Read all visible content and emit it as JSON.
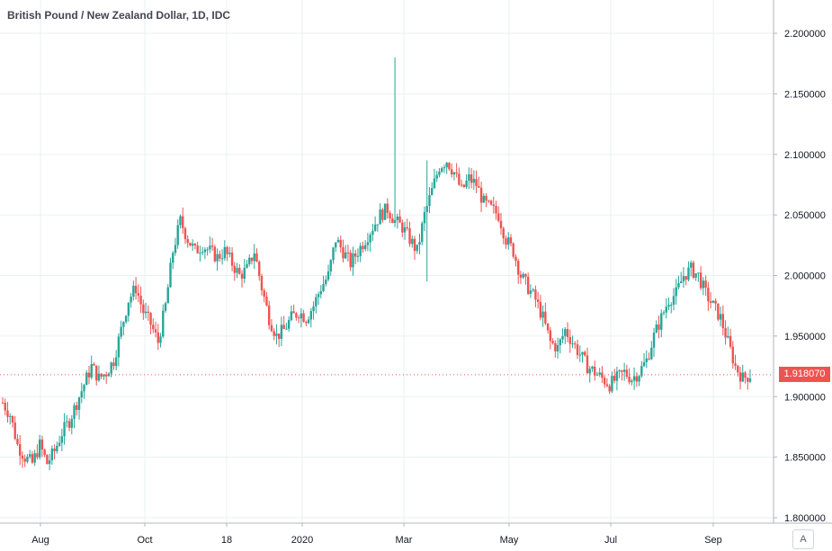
{
  "title": "British Pound / New Zealand Dollar, 1D, IDC",
  "auto_button": "A",
  "last_price": "1.918070",
  "colors": {
    "up": "#26a69a",
    "down": "#ef5350",
    "grid": "#e8f0f3",
    "axis_text": "#131722"
  },
  "chart_data": {
    "type": "candlestick",
    "y_ticks": [
      "2.200000",
      "2.150000",
      "2.100000",
      "2.050000",
      "2.000000",
      "1.950000",
      "1.900000",
      "1.850000",
      "1.800000"
    ],
    "y_values": [
      2.2,
      2.15,
      2.1,
      2.05,
      2.0,
      1.95,
      1.9,
      1.85,
      1.8
    ],
    "ylim": [
      1.79,
      2.215
    ],
    "x_ticks": [
      "Aug",
      "Oct",
      "18",
      "2020",
      "Mar",
      "May",
      "Jul",
      "Sep"
    ],
    "price_path": [
      [
        0,
        1.895
      ],
      [
        3,
        1.885
      ],
      [
        6,
        1.86
      ],
      [
        9,
        1.85
      ],
      [
        12,
        1.845
      ],
      [
        15,
        1.86
      ],
      [
        18,
        1.845
      ],
      [
        21,
        1.855
      ],
      [
        24,
        1.87
      ],
      [
        27,
        1.88
      ],
      [
        30,
        1.895
      ],
      [
        33,
        1.91
      ],
      [
        36,
        1.925
      ],
      [
        39,
        1.915
      ],
      [
        42,
        1.92
      ],
      [
        45,
        1.93
      ],
      [
        48,
        1.955
      ],
      [
        51,
        1.98
      ],
      [
        54,
        1.99
      ],
      [
        57,
        1.97
      ],
      [
        60,
        1.96
      ],
      [
        63,
        1.945
      ],
      [
        66,
        1.975
      ],
      [
        69,
        2.02
      ],
      [
        72,
        2.045
      ],
      [
        75,
        2.03
      ],
      [
        78,
        2.02
      ],
      [
        81,
        2.025
      ],
      [
        84,
        2.02
      ],
      [
        87,
        2.015
      ],
      [
        90,
        2.02
      ],
      [
        93,
        2.01
      ],
      [
        96,
        2.0
      ],
      [
        99,
        2.005
      ],
      [
        102,
        2.02
      ],
      [
        105,
        1.99
      ],
      [
        108,
        1.965
      ],
      [
        111,
        1.95
      ],
      [
        114,
        1.955
      ],
      [
        117,
        1.965
      ],
      [
        120,
        1.97
      ],
      [
        123,
        1.965
      ],
      [
        126,
        1.975
      ],
      [
        129,
        1.99
      ],
      [
        132,
        2.0
      ],
      [
        135,
        2.03
      ],
      [
        138,
        2.02
      ],
      [
        141,
        2.01
      ],
      [
        144,
        2.02
      ],
      [
        147,
        2.03
      ],
      [
        150,
        2.04
      ],
      [
        153,
        2.05
      ],
      [
        156,
        2.055
      ],
      [
        159,
        2.045
      ],
      [
        162,
        2.04
      ],
      [
        165,
        2.03
      ],
      [
        168,
        2.02
      ],
      [
        171,
        2.05
      ],
      [
        174,
        2.07
      ],
      [
        177,
        2.09
      ],
      [
        180,
        2.095
      ],
      [
        183,
        2.085
      ],
      [
        186,
        2.07
      ],
      [
        189,
        2.08
      ],
      [
        192,
        2.075
      ],
      [
        195,
        2.06
      ],
      [
        198,
        2.055
      ],
      [
        201,
        2.05
      ],
      [
        204,
        2.03
      ],
      [
        207,
        2.02
      ],
      [
        210,
        2.0
      ],
      [
        213,
        1.99
      ],
      [
        216,
        1.98
      ],
      [
        219,
        1.965
      ],
      [
        222,
        1.945
      ],
      [
        225,
        1.94
      ],
      [
        228,
        1.955
      ],
      [
        231,
        1.945
      ],
      [
        234,
        1.935
      ],
      [
        237,
        1.925
      ],
      [
        240,
        1.92
      ],
      [
        243,
        1.915
      ],
      [
        246,
        1.91
      ],
      [
        249,
        1.915
      ],
      [
        252,
        1.92
      ],
      [
        255,
        1.915
      ],
      [
        258,
        1.92
      ],
      [
        261,
        1.93
      ],
      [
        264,
        1.95
      ],
      [
        267,
        1.965
      ],
      [
        270,
        1.98
      ],
      [
        273,
        1.985
      ],
      [
        276,
        2.0
      ],
      [
        279,
        2.005
      ],
      [
        282,
        2.0
      ],
      [
        285,
        1.985
      ],
      [
        288,
        1.975
      ],
      [
        291,
        1.965
      ],
      [
        294,
        1.945
      ],
      [
        297,
        1.925
      ],
      [
        300,
        1.915
      ],
      [
        303,
        1.918
      ]
    ],
    "spike": {
      "high": 2.18,
      "low": 2.04
    }
  }
}
